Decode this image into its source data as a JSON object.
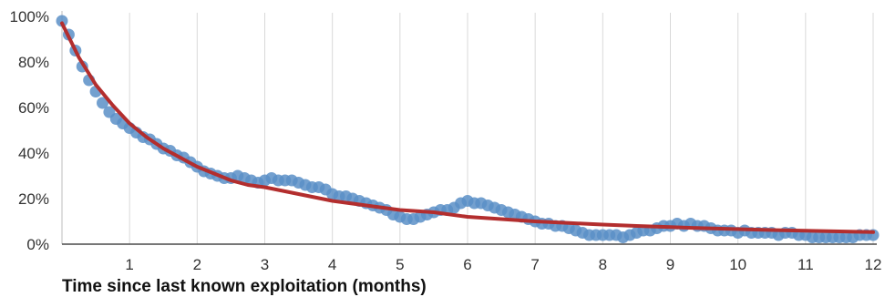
{
  "chart_data": {
    "type": "scatter",
    "title": "",
    "xlabel": "Time since last known exploitation (months)",
    "ylabel": "",
    "xlim": [
      0,
      12
    ],
    "ylim": [
      0,
      100
    ],
    "x_ticks": [
      {
        "value": 1,
        "label": "1"
      },
      {
        "value": 2,
        "label": "2"
      },
      {
        "value": 3,
        "label": "3"
      },
      {
        "value": 4,
        "label": "4"
      },
      {
        "value": 5,
        "label": "5"
      },
      {
        "value": 6,
        "label": "6"
      },
      {
        "value": 7,
        "label": "7"
      },
      {
        "value": 8,
        "label": "8"
      },
      {
        "value": 9,
        "label": "9"
      },
      {
        "value": 10,
        "label": "10"
      },
      {
        "value": 11,
        "label": "11"
      },
      {
        "value": 12,
        "label": "12"
      }
    ],
    "y_ticks": [
      {
        "value": 0,
        "label": "0%"
      },
      {
        "value": 20,
        "label": "20%"
      },
      {
        "value": 40,
        "label": "40%"
      },
      {
        "value": 60,
        "label": "60%"
      },
      {
        "value": 80,
        "label": "80%"
      },
      {
        "value": 100,
        "label": "100%"
      }
    ],
    "grid": {
      "vertical": true,
      "horizontal": false
    },
    "legend": "none",
    "series": [
      {
        "kind": "scatter",
        "color": "#5b8fc7",
        "points": [
          [
            0.0,
            98
          ],
          [
            0.1,
            92
          ],
          [
            0.2,
            85
          ],
          [
            0.3,
            78
          ],
          [
            0.4,
            72
          ],
          [
            0.5,
            67
          ],
          [
            0.6,
            62
          ],
          [
            0.7,
            58
          ],
          [
            0.8,
            55
          ],
          [
            0.9,
            53
          ],
          [
            1.0,
            51
          ],
          [
            1.1,
            49
          ],
          [
            1.2,
            47
          ],
          [
            1.3,
            46
          ],
          [
            1.4,
            44
          ],
          [
            1.5,
            42
          ],
          [
            1.6,
            41
          ],
          [
            1.7,
            39
          ],
          [
            1.8,
            38
          ],
          [
            1.9,
            36
          ],
          [
            2.0,
            34
          ],
          [
            2.1,
            32
          ],
          [
            2.2,
            31
          ],
          [
            2.3,
            30
          ],
          [
            2.4,
            29
          ],
          [
            2.5,
            29
          ],
          [
            2.6,
            30
          ],
          [
            2.7,
            29
          ],
          [
            2.8,
            28
          ],
          [
            2.9,
            27
          ],
          [
            3.0,
            28
          ],
          [
            3.1,
            29
          ],
          [
            3.2,
            28
          ],
          [
            3.3,
            28
          ],
          [
            3.4,
            28
          ],
          [
            3.5,
            27
          ],
          [
            3.6,
            26
          ],
          [
            3.7,
            25
          ],
          [
            3.8,
            25
          ],
          [
            3.9,
            24
          ],
          [
            4.0,
            22
          ],
          [
            4.1,
            21
          ],
          [
            4.2,
            21
          ],
          [
            4.3,
            20
          ],
          [
            4.4,
            19
          ],
          [
            4.5,
            18
          ],
          [
            4.6,
            17
          ],
          [
            4.7,
            16
          ],
          [
            4.8,
            15
          ],
          [
            4.9,
            13
          ],
          [
            5.0,
            12
          ],
          [
            5.1,
            11
          ],
          [
            5.2,
            11
          ],
          [
            5.3,
            12
          ],
          [
            5.4,
            13
          ],
          [
            5.5,
            14
          ],
          [
            5.6,
            15
          ],
          [
            5.7,
            15
          ],
          [
            5.8,
            16
          ],
          [
            5.9,
            18
          ],
          [
            6.0,
            19
          ],
          [
            6.1,
            18
          ],
          [
            6.2,
            18
          ],
          [
            6.3,
            17
          ],
          [
            6.4,
            16
          ],
          [
            6.5,
            15
          ],
          [
            6.6,
            14
          ],
          [
            6.7,
            13
          ],
          [
            6.8,
            12
          ],
          [
            6.9,
            11
          ],
          [
            7.0,
            10
          ],
          [
            7.1,
            9
          ],
          [
            7.2,
            9
          ],
          [
            7.3,
            8
          ],
          [
            7.4,
            8
          ],
          [
            7.5,
            7
          ],
          [
            7.6,
            6
          ],
          [
            7.7,
            5
          ],
          [
            7.8,
            4
          ],
          [
            7.9,
            4
          ],
          [
            8.0,
            4
          ],
          [
            8.1,
            4
          ],
          [
            8.2,
            4
          ],
          [
            8.3,
            3
          ],
          [
            8.4,
            4
          ],
          [
            8.5,
            5
          ],
          [
            8.6,
            6
          ],
          [
            8.7,
            6
          ],
          [
            8.8,
            7
          ],
          [
            8.9,
            8
          ],
          [
            9.0,
            8
          ],
          [
            9.1,
            9
          ],
          [
            9.2,
            8
          ],
          [
            9.3,
            9
          ],
          [
            9.4,
            8
          ],
          [
            9.5,
            8
          ],
          [
            9.6,
            7
          ],
          [
            9.7,
            6
          ],
          [
            9.8,
            6
          ],
          [
            9.9,
            6
          ],
          [
            10.0,
            5
          ],
          [
            10.1,
            6
          ],
          [
            10.2,
            5
          ],
          [
            10.3,
            5
          ],
          [
            10.4,
            5
          ],
          [
            10.5,
            5
          ],
          [
            10.6,
            4
          ],
          [
            10.7,
            5
          ],
          [
            10.8,
            5
          ],
          [
            10.9,
            4
          ],
          [
            11.0,
            4
          ],
          [
            11.1,
            3
          ],
          [
            11.2,
            3
          ],
          [
            11.3,
            3
          ],
          [
            11.4,
            3
          ],
          [
            11.5,
            3
          ],
          [
            11.6,
            3
          ],
          [
            11.7,
            3
          ],
          [
            11.8,
            4
          ],
          [
            11.9,
            4
          ],
          [
            12.0,
            4
          ]
        ]
      },
      {
        "kind": "line",
        "color": "#b32e2e",
        "points": [
          [
            0.0,
            97
          ],
          [
            0.25,
            82
          ],
          [
            0.5,
            70
          ],
          [
            0.75,
            61
          ],
          [
            1.0,
            53
          ],
          [
            1.25,
            47
          ],
          [
            1.5,
            42
          ],
          [
            1.75,
            38
          ],
          [
            2.0,
            34
          ],
          [
            2.25,
            31
          ],
          [
            2.5,
            28
          ],
          [
            2.75,
            26
          ],
          [
            3.0,
            25
          ],
          [
            3.5,
            22
          ],
          [
            4.0,
            19
          ],
          [
            4.5,
            17
          ],
          [
            5.0,
            15
          ],
          [
            5.5,
            14
          ],
          [
            6.0,
            12
          ],
          [
            6.5,
            11
          ],
          [
            7.0,
            10
          ],
          [
            7.5,
            9.3
          ],
          [
            8.0,
            8.6
          ],
          [
            8.5,
            8.0
          ],
          [
            9.0,
            7.5
          ],
          [
            9.5,
            7.0
          ],
          [
            10.0,
            6.6
          ],
          [
            10.5,
            6.2
          ],
          [
            11.0,
            5.9
          ],
          [
            11.5,
            5.6
          ],
          [
            12.0,
            5.3
          ]
        ]
      }
    ]
  }
}
